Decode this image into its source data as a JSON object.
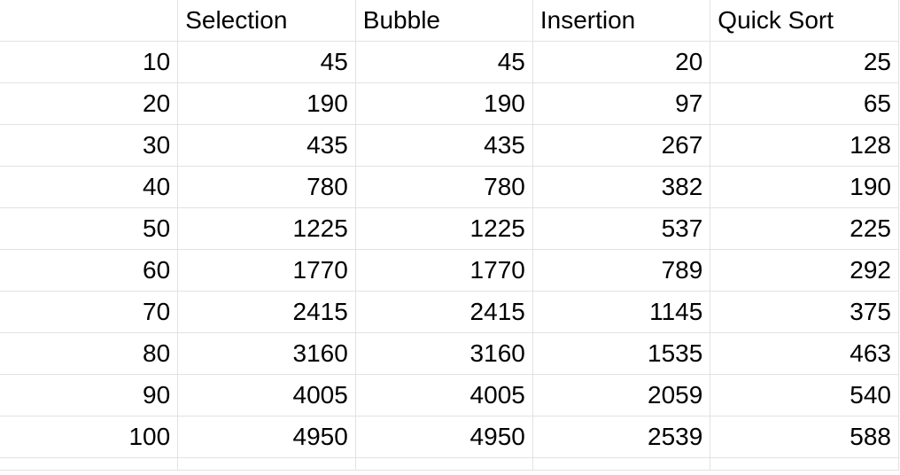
{
  "table": {
    "headers": [
      "",
      "Selection",
      "Bubble",
      "Insertion",
      "Quick Sort"
    ],
    "rows": [
      [
        "10",
        "45",
        "45",
        "20",
        "25"
      ],
      [
        "20",
        "190",
        "190",
        "97",
        "65"
      ],
      [
        "30",
        "435",
        "435",
        "267",
        "128"
      ],
      [
        "40",
        "780",
        "780",
        "382",
        "190"
      ],
      [
        "50",
        "1225",
        "1225",
        "537",
        "225"
      ],
      [
        "60",
        "1770",
        "1770",
        "789",
        "292"
      ],
      [
        "70",
        "2415",
        "2415",
        "1145",
        "375"
      ],
      [
        "80",
        "3160",
        "3160",
        "1535",
        "463"
      ],
      [
        "90",
        "4005",
        "4005",
        "2059",
        "540"
      ],
      [
        "100",
        "4950",
        "4950",
        "2539",
        "588"
      ]
    ]
  },
  "colors": {
    "gridline": "#e2e2e2",
    "text": "#000000",
    "background": "#ffffff"
  }
}
